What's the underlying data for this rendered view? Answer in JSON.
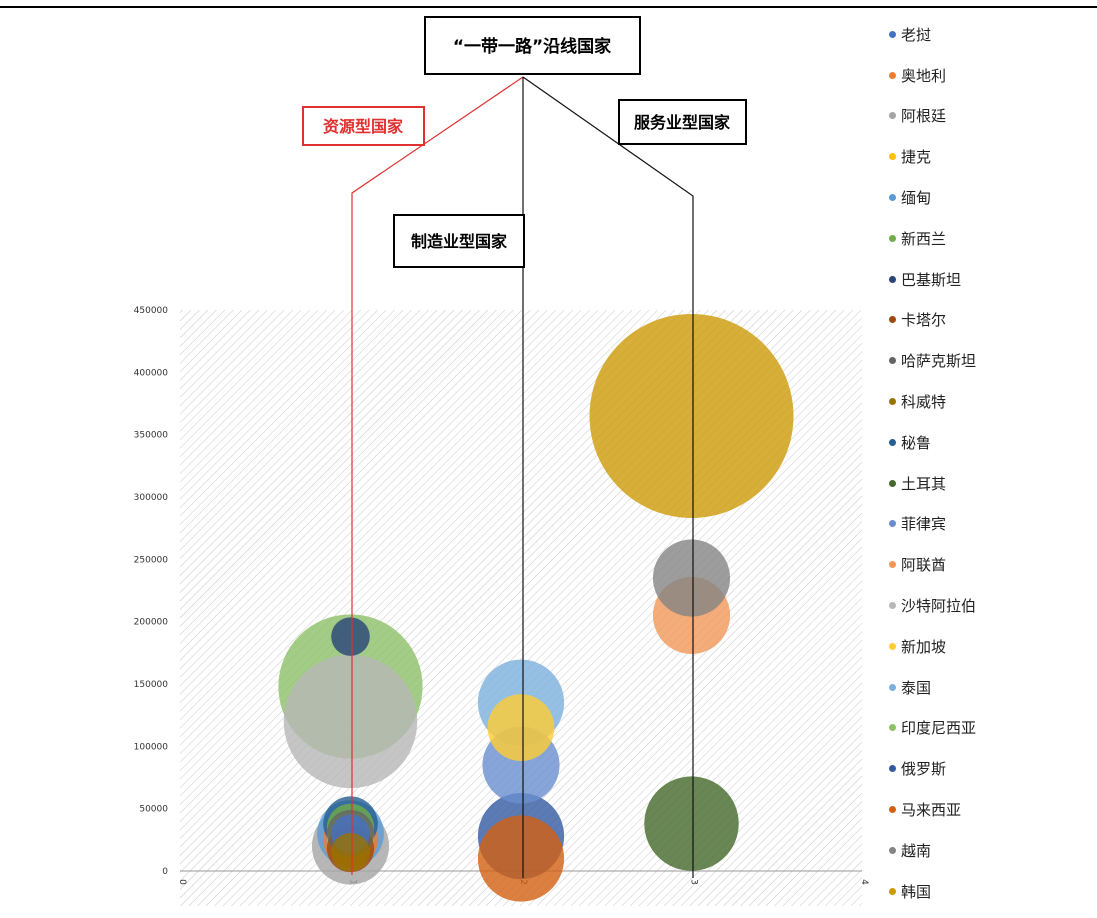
{
  "chart_data": {
    "type": "bubble",
    "xlim": [
      0,
      4
    ],
    "ylim": [
      0,
      450000
    ],
    "x_ticks": [
      "0",
      "1",
      "2",
      "3",
      "4"
    ],
    "y_ticks": [
      "0",
      "50000",
      "100000",
      "150000",
      "200000",
      "250000",
      "300000",
      "350000",
      "400000",
      "450000"
    ],
    "legend_position": "right",
    "annotations": {
      "root": "“一带一路”沿线国家",
      "branch_resource": "资源型国家",
      "branch_manufacturing": "制造业型国家",
      "branch_service": "服务业型国家"
    },
    "series": [
      {
        "name": "老挝",
        "color": "#4472c4",
        "x": 1,
        "y": 30000,
        "size": 1
      },
      {
        "name": "奥地利",
        "color": "#ed7d31",
        "x": 1,
        "y": 25000,
        "size": 2
      },
      {
        "name": "阿根廷",
        "color": "#a5a5a5",
        "x": 1,
        "y": 20000,
        "size": 4
      },
      {
        "name": "捷克",
        "color": "#ffc000",
        "x": 1,
        "y": 28000,
        "size": 1.5
      },
      {
        "name": "缅甸",
        "color": "#5b9bd5",
        "x": 1,
        "y": 30000,
        "size": 3
      },
      {
        "name": "新西兰",
        "color": "#70ad47",
        "x": 1,
        "y": 35000,
        "size": 1.5
      },
      {
        "name": "巴基斯坦",
        "color": "#264478",
        "x": 1,
        "y": 188000,
        "size": 1
      },
      {
        "name": "卡塔尔",
        "color": "#9e480e",
        "x": 1,
        "y": 18000,
        "size": 1.5
      },
      {
        "name": "哈萨克斯坦",
        "color": "#636363",
        "x": 1,
        "y": 30000,
        "size": 1.5
      },
      {
        "name": "科威特",
        "color": "#997300",
        "x": 1,
        "y": 15000,
        "size": 1
      },
      {
        "name": "秘鲁",
        "color": "#255e91",
        "x": 1,
        "y": 38000,
        "size": 2
      },
      {
        "name": "土耳其",
        "color": "#43682b",
        "x": 3,
        "y": 38000,
        "size": 6
      },
      {
        "name": "菲律宾",
        "color": "#698ed0",
        "x": 2,
        "y": 85000,
        "size": 4
      },
      {
        "name": "阿联酋",
        "color": "#f1975a",
        "x": 3,
        "y": 205000,
        "size": 4
      },
      {
        "name": "沙特阿拉伯",
        "color": "#b7b7b7",
        "x": 1,
        "y": 120000,
        "size": 12
      },
      {
        "name": "新加坡",
        "color": "#ffcd33",
        "x": 2,
        "y": 115000,
        "size": 3
      },
      {
        "name": "泰国",
        "color": "#7cafdd",
        "x": 2,
        "y": 135000,
        "size": 5
      },
      {
        "name": "印度尼西亚",
        "color": "#8cc168",
        "x": 1,
        "y": 148000,
        "size": 14
      },
      {
        "name": "俄罗斯",
        "color": "#335aa1",
        "x": 2,
        "y": 28000,
        "size": 5
      },
      {
        "name": "马来西亚",
        "color": "#d26012",
        "x": 2,
        "y": 10000,
        "size": 5
      },
      {
        "name": "越南",
        "color": "#848484",
        "x": 3,
        "y": 235000,
        "size": 4
      },
      {
        "name": "韩国",
        "color": "#cc9a06",
        "x": 3,
        "y": 365000,
        "size": 28
      }
    ]
  }
}
